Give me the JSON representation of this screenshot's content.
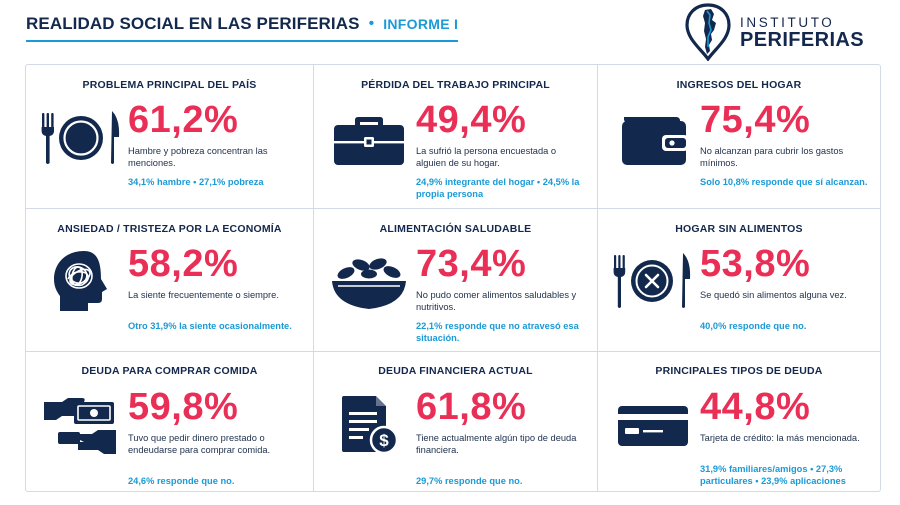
{
  "header": {
    "title": "REALIDAD SOCIAL EN LAS PERIFERIAS",
    "separator": "•",
    "subtitle": "INFORME I"
  },
  "logo": {
    "line1": "INSTITUTO",
    "line2": "PERIFERIAS",
    "icon": "argentina-map-pin-icon"
  },
  "colors": {
    "navy": "#13284d",
    "accent_pink": "#ea2f57",
    "accent_blue": "#1a9ad6"
  },
  "cards": [
    {
      "title": "PROBLEMA PRINCIPAL DEL PAÍS",
      "icon": "plate-cutlery-icon",
      "value": "61,2%",
      "description": "Hambre y pobreza concentran las menciones.",
      "note": "34,1% hambre • 27,1% pobreza"
    },
    {
      "title": "PÉRDIDA DEL TRABAJO PRINCIPAL",
      "icon": "briefcase-icon",
      "value": "49,4%",
      "description": "La sufrió la persona encuestada o alguien de su hogar.",
      "note": "24,9% integrante del hogar • 24,5% la propia persona"
    },
    {
      "title": "INGRESOS DEL HOGAR",
      "icon": "wallet-icon",
      "value": "75,4%",
      "description": "No alcanzan para cubrir los gastos mínimos.",
      "note": "Solo 10,8% responde que sí alcanzan."
    },
    {
      "title": "ANSIEDAD / TRISTEZA POR LA ECONOMÍA",
      "icon": "head-scribble-icon",
      "value": "58,2%",
      "description": "La siente frecuentemente o siempre.",
      "note": "Otro 31,9% la siente ocasionalmente."
    },
    {
      "title": "ALIMENTACIÓN SALUDABLE",
      "icon": "salad-bowl-icon",
      "value": "73,4%",
      "description": "No pudo comer alimentos saludables y nutritivos.",
      "note": "22,1% responde que no atravesó esa situación."
    },
    {
      "title": "HOGAR SIN ALIMENTOS",
      "icon": "empty-plate-icon",
      "value": "53,8%",
      "description": "Se quedó sin alimentos alguna vez.",
      "note": "40,0% responde que no."
    },
    {
      "title": "DEUDA PARA COMPRAR COMIDA",
      "icon": "hand-money-icon",
      "value": "59,8%",
      "description": "Tuvo que pedir dinero prestado o endeudarse para comprar comida.",
      "note": "24,6% responde que no."
    },
    {
      "title": "DEUDA FINANCIERA ACTUAL",
      "icon": "bill-dollar-icon",
      "value": "61,8%",
      "description": "Tiene actualmente algún tipo de deuda financiera.",
      "note": "29,7% responde que no."
    },
    {
      "title": "PRINCIPALES TIPOS DE DEUDA",
      "icon": "credit-card-icon",
      "value": "44,8%",
      "description": "Tarjeta de crédito: la más mencionada.",
      "note": "31,9% familiares/amigos • 27,3% particulares • 23,9% aplicaciones"
    }
  ]
}
